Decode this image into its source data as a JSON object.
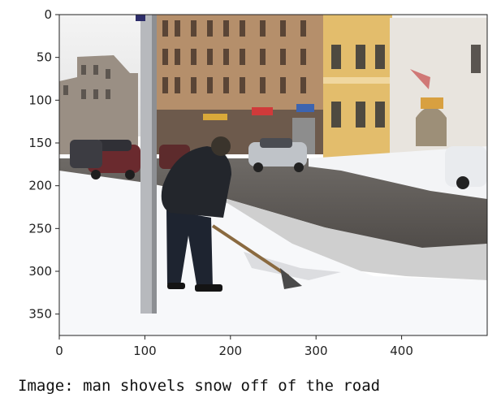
{
  "image": {
    "x_ticks": [
      0,
      100,
      200,
      300,
      400
    ],
    "y_ticks": [
      0,
      50,
      100,
      150,
      200,
      250,
      300,
      350
    ],
    "x_range": [
      0,
      500
    ],
    "y_range": [
      0,
      375
    ]
  },
  "caption": "Image: man shovels snow off of the road"
}
